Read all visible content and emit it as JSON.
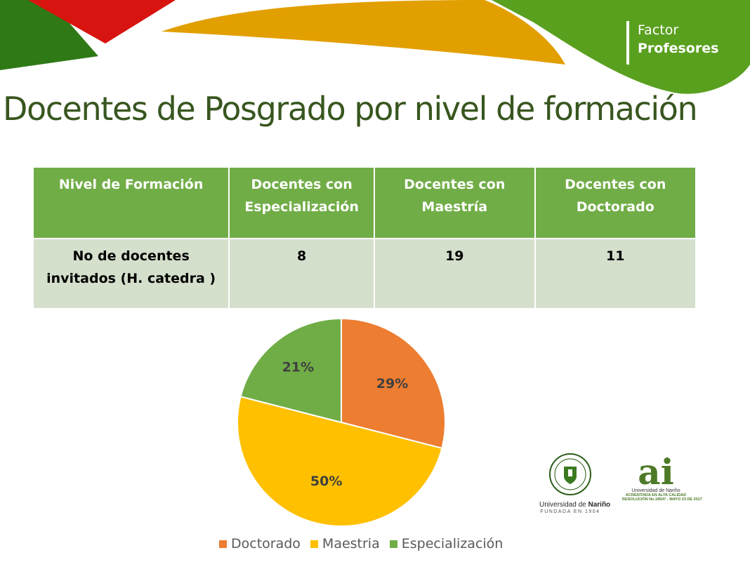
{
  "brand": {
    "line1": "Factor",
    "line2": "Profesores"
  },
  "title": "Docentes de Posgrado por nivel de formación",
  "table": {
    "headers": [
      "Nivel de Formación",
      "Docentes  con\nEspecialización",
      "Docentes con\nMaestría",
      "Docentes con\nDoctorado"
    ],
    "row": {
      "label": "No de docentes\ninvitados (H. catedra )",
      "values": [
        "8",
        "19",
        "11"
      ]
    }
  },
  "chart_data": {
    "type": "pie",
    "categories": [
      "Doctorado",
      "Maestria",
      "Especialización"
    ],
    "values": [
      29,
      50,
      21
    ],
    "labels": [
      "29%",
      "50%",
      "21%"
    ],
    "colors": [
      "#ed7d31",
      "#ffc000",
      "#70ad47"
    ],
    "legend": "bottom"
  },
  "logos": {
    "unarino": {
      "name_prefix": "Universidad de ",
      "name_bold": "Nariño",
      "sub": "FUNDADA EN 1904"
    },
    "ai": {
      "mark": "ai",
      "line1": "Universidad de Nariño",
      "line2": "ACREDITADA EN ALTA CALIDAD",
      "line3": "RESOLUCIÓN No.18547 - MAYO 23 DE 2017"
    }
  },
  "colors": {
    "title": "#38561f",
    "header_bg": "#71ad47",
    "row_bg": "#d4dfcc",
    "deco_red": "#d7140f",
    "deco_green": "#3e8b1d",
    "deco_orange": "#e29f00",
    "deco_brand_green": "#5aa01f"
  }
}
